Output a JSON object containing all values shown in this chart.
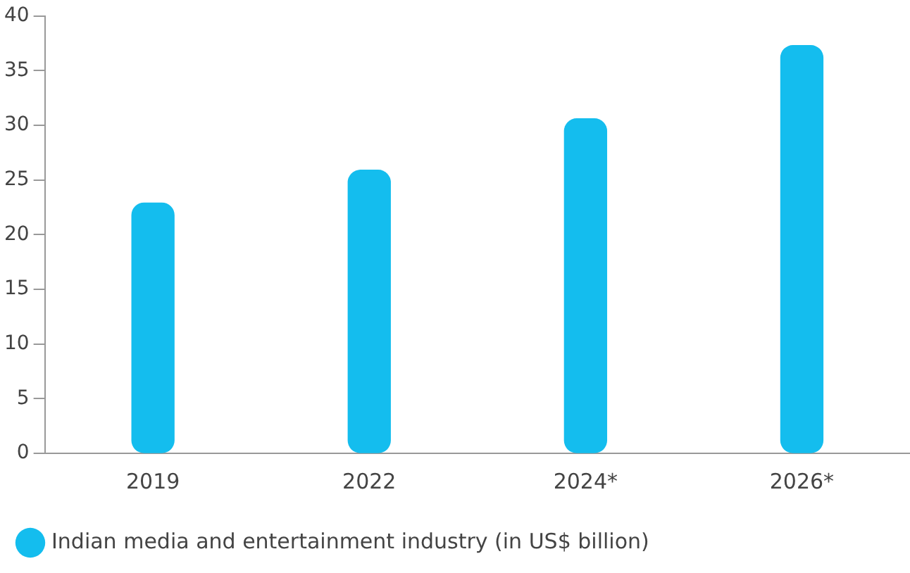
{
  "chart_data": {
    "type": "bar",
    "categories": [
      "2019",
      "2022",
      "2024*",
      "2026*"
    ],
    "series": [
      {
        "name": "Indian media and entertainment industry (in US$ billion)",
        "color": "#14bdee",
        "values": [
          22.9,
          25.9,
          30.6,
          37.3
        ]
      }
    ],
    "ylim": [
      0,
      40
    ],
    "yticks": [
      0,
      5,
      10,
      15,
      20,
      25,
      30,
      35,
      40
    ],
    "grid": false,
    "legend": "bottom"
  }
}
